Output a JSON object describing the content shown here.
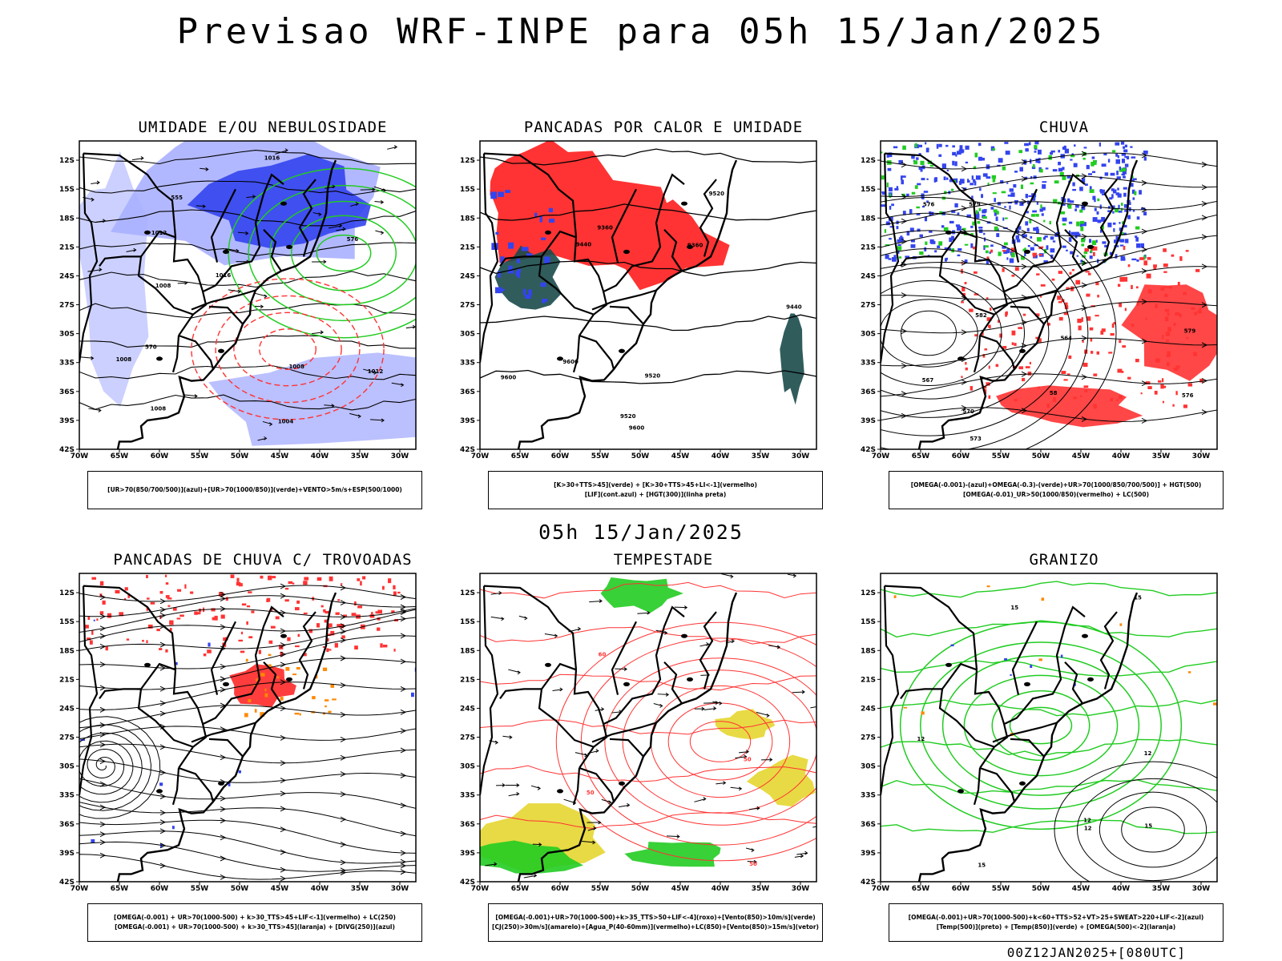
{
  "title": "Previsao WRF-INPE  para 05h 15/Jan/2025",
  "mid_title": "05h 15/Jan/2025",
  "footer": "00Z12JAN2025+[080UTC]",
  "lat_ticks": [
    "12S",
    "15S",
    "18S",
    "21S",
    "24S",
    "27S",
    "30S",
    "33S",
    "36S",
    "39S",
    "42S"
  ],
  "lon_ticks": [
    "70W",
    "65W",
    "60W",
    "55W",
    "50W",
    "45W",
    "40W",
    "35W",
    "30W"
  ],
  "colors": {
    "blue": "#3344ee",
    "lightblue": "#aab0ff",
    "green": "#22cc22",
    "red": "#ff3333",
    "orange": "#ff8800",
    "yellow": "#e6d630",
    "teal": "#1a4a4a",
    "black": "#000000"
  },
  "panels": [
    {
      "id": "umidade",
      "title": "UMIDADE E/OU NEBULOSIDADE",
      "legend": [
        "[UR>70(850/700/500)](azul)+[UR>70(1000/850)](verde)+VENTO>5m/s+ESP(500/1000)"
      ],
      "labels": [
        "1008",
        "1008",
        "1008",
        "1012",
        "1004",
        "1012",
        "1016",
        "1016",
        "1008",
        "570",
        "576",
        "555"
      ]
    },
    {
      "id": "pancadas-calor",
      "title": "PANCADAS POR CALOR E UMIDADE",
      "legend": [
        "[K>30+TTS>45](verde) + [K>30+TTS>45+LI<-1](vermelho)",
        "[LIF](cont.azul) + [HGT(300)](linha preta)"
      ],
      "labels": [
        "9600",
        "9600",
        "9600",
        "9520",
        "9520",
        "9520",
        "9440",
        "9440",
        "9360",
        "9360"
      ]
    },
    {
      "id": "chuva",
      "title": "CHUVA",
      "legend": [
        "[OMEGA(-0.001)-(azul)+OMEGA(-0.3)-(verde)+UR>70(1000/850/700/500)] + HGT(500)",
        "[OMEGA(-0.01)_UR>50(1000/850)(vermelho) + LC(500)"
      ],
      "labels": [
        "582",
        "579",
        "576",
        "573",
        "570",
        "567",
        "564",
        "579",
        "576",
        "58"
      ]
    },
    {
      "id": "pancadas-trovoadas",
      "title": "PANCADAS DE CHUVA C/ TROVOADAS",
      "legend": [
        "[OMEGA(-0.001) + UR>70(1000-500) + k>30_TTS>45+LIF<-1](vermelho) + LC(250)",
        "[OMEGA(-0.001) + UR>70(1000-500) + k>30_TTS>45](laranja) + [DIVG(250)](azul)"
      ],
      "labels": []
    },
    {
      "id": "tempestade",
      "title": "TEMPESTADE",
      "legend": [
        "[OMEGA(-0.001)+UR>70(1000-500)+k>35_TTS>50+LIF<-4](roxo)+[Vento(850)>10m/s](verde)",
        "[CJ(250)>30m/s](amarelo)+[Agua_P(40-60mm)](vermelho)+LC(850)+[Vento(850)>15m/s](vetor)"
      ],
      "labels": [
        "60",
        "50",
        "50",
        "50"
      ]
    },
    {
      "id": "granizo",
      "title": "GRANIZO",
      "legend": [
        "[OMEGA(-0.001)+UR>70(1000-500)+k<60+TTS>52+VT>25+SWEAT>220+LIF<-2](azul)",
        "[Temp(500)](preto) + [Temp(850)](verde) + [OMEGA(500)<-2](laranja)"
      ],
      "labels": [
        "15",
        "12",
        "15",
        "12",
        "12",
        "15",
        "15",
        "12"
      ]
    }
  ]
}
